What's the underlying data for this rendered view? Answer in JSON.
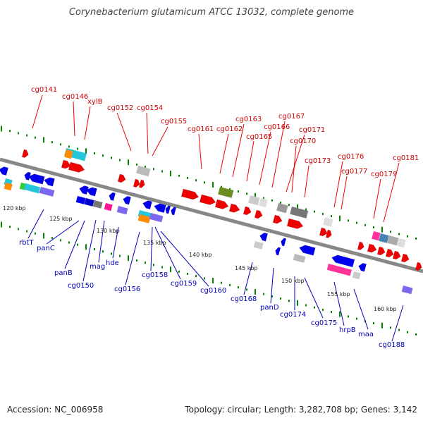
{
  "title": "Corynebacterium glutamicum ATCC 13032, complete genome",
  "accession": "Accession: NC_006958",
  "topology": "Topology: circular; Length: 3,282,708 bp; Genes: 3,142",
  "colors": {
    "forward": "#ee0000",
    "reverse": "#0000ee",
    "backbone": "#888888",
    "tick": "#008800",
    "top_label": "#cc0000",
    "bottom_label": "#0000bb"
  },
  "scale_labels": [
    "120 kbp",
    "125 kbp",
    "130 kbp",
    "135 kbp",
    "140 kbp",
    "145 kbp",
    "150 kbp",
    "155 kbp",
    "160 kbp"
  ],
  "top_labels": [
    "cg0141",
    "cg0146",
    "xylB",
    "cg0152",
    "cg0154",
    "cg0155",
    "cg0161",
    "cg0162",
    "cg0163",
    "cg0165",
    "cg0166",
    "cg0167",
    "cg0171",
    "cg0170",
    "cg0173",
    "cg0176",
    "cg0177",
    "cg0179",
    "cg0181"
  ],
  "bottom_labels": [
    "rbtT",
    "panC",
    "panB",
    "cg0150",
    "mag",
    "hde",
    "cg0156",
    "cg0158",
    "cg0159",
    "cg0160",
    "cg0168",
    "panD",
    "cg0174",
    "cg0175",
    "hrpB",
    "maa",
    "cg0188"
  ]
}
